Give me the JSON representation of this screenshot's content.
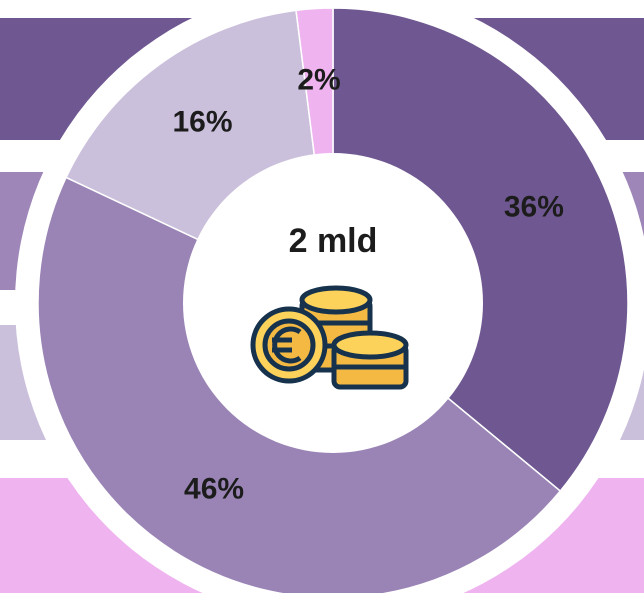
{
  "chart_data": {
    "type": "donut",
    "values": [
      36,
      46,
      16,
      2
    ],
    "value_labels": [
      "36%",
      "46%",
      "16%",
      "2%"
    ],
    "colors": [
      "#6f5891",
      "#9a84b5",
      "#cbc0dc",
      "#efb4f0"
    ],
    "center_label": "2 mld"
  }
}
